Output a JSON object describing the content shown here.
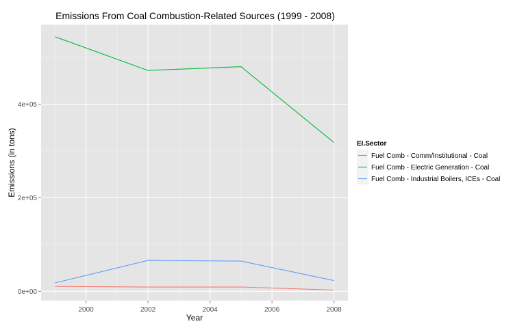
{
  "chart_data": {
    "type": "line",
    "title": "Emissions From Coal Combustion-Related Sources (1999 - 2008)",
    "xlabel": "Year",
    "ylabel": "Emissions (in tons)",
    "x": [
      1999,
      2002,
      2005,
      2008
    ],
    "xlim": [
      1998.55,
      2008.45
    ],
    "ylim": [
      -20000,
      570000
    ],
    "x_ticks": [
      {
        "value": 2000,
        "label": "2000"
      },
      {
        "value": 2002,
        "label": "2002"
      },
      {
        "value": 2004,
        "label": "2004"
      },
      {
        "value": 2006,
        "label": "2006"
      },
      {
        "value": 2008,
        "label": "2008"
      }
    ],
    "y_ticks": [
      {
        "value": 0,
        "label": "0e+00"
      },
      {
        "value": 200000,
        "label": "2e+05"
      },
      {
        "value": 400000,
        "label": "4e+05"
      }
    ],
    "y_minor_ticks": [
      100000,
      300000,
      500000
    ],
    "x_minor_ticks": [
      1999,
      2001,
      2003,
      2005,
      2007
    ],
    "grid": true,
    "legend": {
      "title": "EI.Sector",
      "placement": "right"
    },
    "series": [
      {
        "name": "Fuel Comb - Comm/Institutional - Coal",
        "color": "#F8766D",
        "values": [
          10500,
          9000,
          9200,
          2600
        ]
      },
      {
        "name": "Fuel Comb - Electric Generation - Coal",
        "color": "#00BA38",
        "values": [
          544000,
          472000,
          480000,
          318000
        ]
      },
      {
        "name": "Fuel Comb - Industrial Boilers, ICEs - Coal",
        "color": "#619CFF",
        "values": [
          18000,
          66000,
          64500,
          23000
        ]
      }
    ]
  }
}
